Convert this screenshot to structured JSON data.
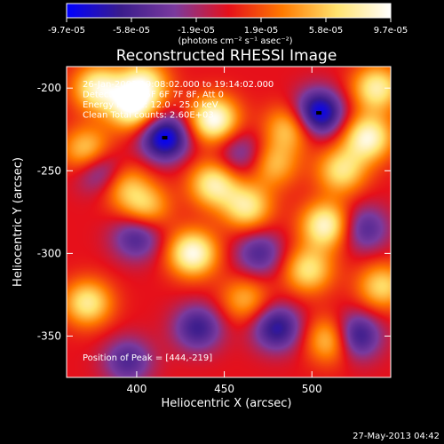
{
  "chart_data": {
    "type": "heatmap",
    "title": "Reconstructed RHESSI Image",
    "xlabel": "Heliocentric X (arcsec)",
    "ylabel": "Heliocentric Y (arcsec)",
    "xlim": [
      360,
      545
    ],
    "ylim": [
      -375,
      -187
    ],
    "x_ticks": [
      400,
      450,
      500
    ],
    "y_ticks": [
      -200,
      -250,
      -300,
      -350
    ],
    "colorbar": {
      "ticks": [
        "-9.7e-05",
        "-5.8e-05",
        "-1.9e-05",
        "1.9e-05",
        "5.8e-05",
        "9.7e-05"
      ],
      "min": -9.7e-05,
      "max": 9.7e-05,
      "unit_label": "(photons cm⁻² s⁻¹ asec⁻²)",
      "colors": [
        "#0000ff",
        "#3a1c8c",
        "#7a3a9e",
        "#e6101a",
        "#ff7a00",
        "#ffe36e",
        "#ffffff"
      ]
    },
    "annotations": [
      "26-Jan-2003 19:08:02.000 to 19:14:02.000",
      "Detectors: 4F 5F 6F 7F 8F, Att 0",
      "Energy Range: 12.0 - 25.0 keV",
      "Clean     Total counts: 2.60E+03"
    ],
    "peak_label": "Position of Peak = [444,-219]",
    "peak": [
      444,
      -219
    ],
    "sources": [
      {
        "x": 378,
        "y": -200,
        "v": 0.85
      },
      {
        "x": 398,
        "y": -212,
        "v": 0.9
      },
      {
        "x": 404,
        "y": -197,
        "v": 0.75
      },
      {
        "x": 444,
        "y": -219,
        "v": 1.0
      },
      {
        "x": 444,
        "y": -258,
        "v": 0.8
      },
      {
        "x": 463,
        "y": -272,
        "v": 0.75
      },
      {
        "x": 432,
        "y": -300,
        "v": 0.95
      },
      {
        "x": 372,
        "y": -238,
        "v": 0.7
      },
      {
        "x": 372,
        "y": -330,
        "v": 0.75
      },
      {
        "x": 392,
        "y": -258,
        "v": 0.55
      },
      {
        "x": 405,
        "y": -272,
        "v": 0.6
      },
      {
        "x": 487,
        "y": -224,
        "v": 0.6
      },
      {
        "x": 478,
        "y": -246,
        "v": 0.55
      },
      {
        "x": 508,
        "y": -283,
        "v": 0.9
      },
      {
        "x": 517,
        "y": -250,
        "v": 0.7
      },
      {
        "x": 532,
        "y": -230,
        "v": 0.9
      },
      {
        "x": 537,
        "y": -200,
        "v": 0.8
      },
      {
        "x": 512,
        "y": -352,
        "v": 0.8
      },
      {
        "x": 498,
        "y": -310,
        "v": 0.7
      },
      {
        "x": 462,
        "y": -328,
        "v": 0.5
      },
      {
        "x": 540,
        "y": -320,
        "v": 0.65
      },
      {
        "x": 416,
        "y": -230,
        "v": -1.0
      },
      {
        "x": 504,
        "y": -215,
        "v": -1.0
      },
      {
        "x": 380,
        "y": -250,
        "v": -0.65
      },
      {
        "x": 400,
        "y": -290,
        "v": -0.6
      },
      {
        "x": 470,
        "y": -300,
        "v": -0.55
      },
      {
        "x": 435,
        "y": -345,
        "v": -0.65
      },
      {
        "x": 480,
        "y": -345,
        "v": -0.75
      },
      {
        "x": 524,
        "y": -350,
        "v": -0.9
      },
      {
        "x": 395,
        "y": -365,
        "v": -0.55
      },
      {
        "x": 530,
        "y": -285,
        "v": -0.55
      },
      {
        "x": 460,
        "y": -240,
        "v": -0.45
      }
    ]
  },
  "footer": {
    "timestamp": "27-May-2013 04:42"
  }
}
